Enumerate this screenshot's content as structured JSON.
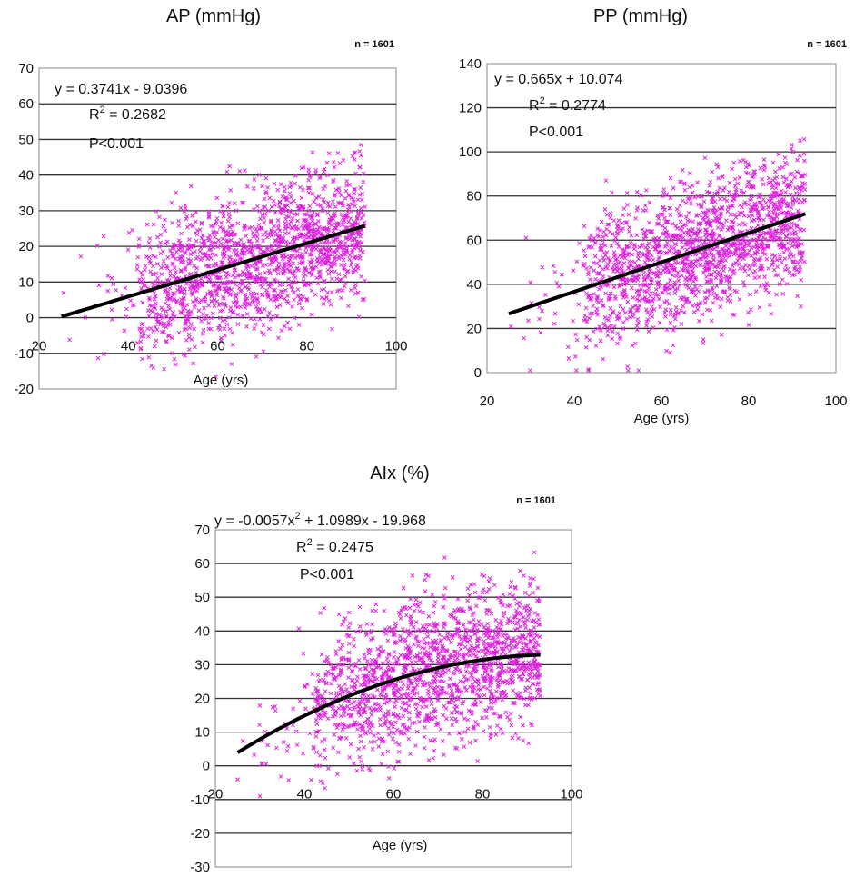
{
  "colors": {
    "points": "#dd22dd",
    "trend": "#000000",
    "grid": "#333333",
    "axis": "#888888"
  },
  "chart_data": [
    {
      "type": "scatter",
      "title": "AP (mmHg)",
      "n_label": "n = 1601",
      "xlabel": "Age (yrs)",
      "ylabel": "",
      "xlim": [
        20,
        100
      ],
      "ylim": [
        -20,
        70
      ],
      "xticks": [
        20,
        40,
        60,
        80,
        100
      ],
      "yticks": [
        -20,
        -10,
        0,
        10,
        20,
        30,
        40,
        50,
        60,
        70
      ],
      "grid": true,
      "equation": {
        "lhs": "y = 0.3741x - 9.0396",
        "r2_label": "R",
        "r2_sup": "2",
        "r2_value": " = 0.2682",
        "p": "P<0.001"
      },
      "trend": {
        "kind": "linear",
        "coef": [
          -9.0396,
          0.3741
        ],
        "x_range": [
          25,
          93
        ]
      },
      "scatter_model": {
        "n": 1601,
        "x_range": [
          25,
          93
        ],
        "residual_sd": 10
      }
    },
    {
      "type": "scatter",
      "title": "PP (mmHg)",
      "n_label": "n = 1601",
      "xlabel": "Age (yrs)",
      "ylabel": "",
      "xlim": [
        20,
        100
      ],
      "ylim": [
        0,
        140
      ],
      "xticks": [
        20,
        40,
        60,
        80,
        100
      ],
      "yticks": [
        0,
        20,
        40,
        60,
        80,
        100,
        120,
        140
      ],
      "grid": true,
      "equation": {
        "lhs": "y = 0.665x + 10.074",
        "r2_label": "R",
        "r2_sup": "2",
        "r2_value": " = 0.2774",
        "p": "P<0.001"
      },
      "trend": {
        "kind": "linear",
        "coef": [
          10.074,
          0.665
        ],
        "x_range": [
          25,
          93
        ]
      },
      "scatter_model": {
        "n": 1601,
        "x_range": [
          25,
          93
        ],
        "residual_sd": 16
      }
    },
    {
      "type": "scatter",
      "title": "AIx (%)",
      "n_label": "n = 1601",
      "xlabel": "Age (yrs)",
      "ylabel": "",
      "xlim": [
        20,
        100
      ],
      "ylim": [
        -30,
        70
      ],
      "xticks": [
        20,
        40,
        60,
        80,
        100
      ],
      "yticks": [
        -30,
        -20,
        -10,
        0,
        10,
        20,
        30,
        40,
        50,
        60,
        70
      ],
      "grid": true,
      "equation": {
        "lhs": "y = -0.0057x",
        "lhs_sup": "2",
        "lhs_rest": " + 1.0989x - 19.968",
        "r2_label": "R",
        "r2_sup": "2",
        "r2_value": " = 0.2475",
        "p": "P<0.001"
      },
      "trend": {
        "kind": "quadratic",
        "coef": [
          -19.968,
          1.0989,
          -0.0057
        ],
        "x_range": [
          25,
          93
        ]
      },
      "scatter_model": {
        "n": 1601,
        "x_range": [
          25,
          93
        ],
        "residual_sd": 11
      }
    }
  ]
}
